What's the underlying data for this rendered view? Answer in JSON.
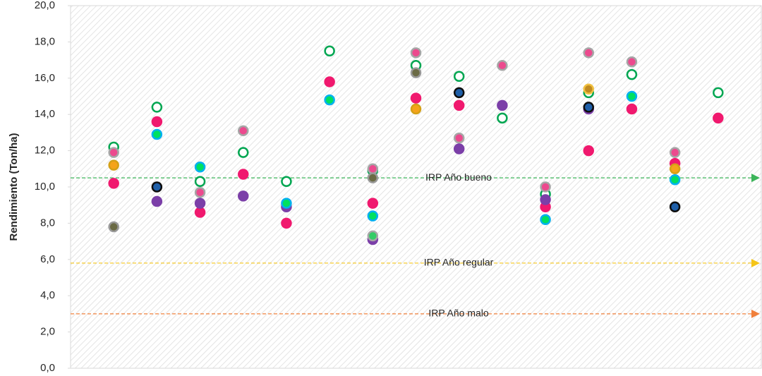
{
  "chart_data": {
    "type": "scatter",
    "y_label": "Rendimiento (Ton/ha)",
    "x": [
      1,
      2,
      3,
      4,
      5,
      6,
      7,
      8,
      9,
      10,
      11,
      12,
      13,
      14,
      15
    ],
    "xlim": [
      0,
      16
    ],
    "ylim": [
      0,
      20
    ],
    "yticks": [
      {
        "value": 0,
        "label": "0,0"
      },
      {
        "value": 2,
        "label": "2,0"
      },
      {
        "value": 4,
        "label": "4,0"
      },
      {
        "value": 6,
        "label": "6,0"
      },
      {
        "value": 8,
        "label": "8,0"
      },
      {
        "value": 10,
        "label": "10,0"
      },
      {
        "value": 12,
        "label": "12,0"
      },
      {
        "value": 14,
        "label": "14,0"
      },
      {
        "value": 16,
        "label": "16,0"
      },
      {
        "value": 18,
        "label": "18,0"
      },
      {
        "value": 20,
        "label": "20,0"
      }
    ],
    "series": [
      {
        "color": "#ffffff",
        "edgecolor": "#00a651",
        "values": [
          12.2,
          14.4,
          10.3,
          11.9,
          10.3,
          17.5,
          10.9,
          16.7,
          16.1,
          13.8,
          9.6,
          15.2,
          16.2,
          null,
          15.2
        ]
      },
      {
        "color": "#ec4a8e",
        "edgecolor": "#a6a6a6",
        "values": [
          11.9,
          null,
          9.7,
          13.1,
          null,
          null,
          11.0,
          17.4,
          12.7,
          16.7,
          10.0,
          17.4,
          16.9,
          11.9,
          null
        ]
      },
      {
        "color": "#f0196e",
        "edgecolor": "#f0196e",
        "values": [
          10.2,
          13.6,
          8.6,
          10.7,
          8.0,
          15.8,
          9.1,
          14.9,
          14.5,
          null,
          8.9,
          12.0,
          14.3,
          11.3,
          13.8
        ]
      },
      {
        "color": "#7b3fa8",
        "edgecolor": "#7b3fa8",
        "values": [
          null,
          9.2,
          9.1,
          9.5,
          8.9,
          null,
          7.1,
          null,
          12.1,
          14.5,
          9.3,
          14.3,
          null,
          null,
          null
        ]
      },
      {
        "color": "#f5a31a",
        "edgecolor": "#d4a017",
        "values": [
          11.2,
          null,
          null,
          null,
          null,
          null,
          null,
          14.3,
          null,
          null,
          null,
          null,
          null,
          11.0,
          null
        ]
      },
      {
        "color": "#6b6b45",
        "edgecolor": "#999999",
        "values": [
          7.8,
          null,
          null,
          null,
          null,
          null,
          10.5,
          16.3,
          null,
          null,
          null,
          null,
          null,
          null,
          null
        ]
      },
      {
        "color": "#00e060",
        "edgecolor": "#00b0f0",
        "values": [
          null,
          12.9,
          11.1,
          null,
          9.1,
          14.8,
          8.4,
          null,
          null,
          null,
          8.2,
          null,
          15.0,
          10.4,
          null
        ]
      },
      {
        "color": "#1f5fa8",
        "edgecolor": "#0d0d0d",
        "values": [
          null,
          10.0,
          null,
          null,
          null,
          null,
          null,
          null,
          15.2,
          null,
          null,
          14.4,
          null,
          8.9,
          null
        ]
      },
      {
        "color": "#33cc66",
        "edgecolor": "#a6a6a6",
        "values": [
          null,
          null,
          null,
          null,
          null,
          null,
          7.3,
          null,
          null,
          null,
          null,
          null,
          null,
          null,
          null
        ]
      },
      {
        "color": "#c08a20",
        "edgecolor": "#f0c040",
        "values": [
          null,
          null,
          null,
          null,
          null,
          null,
          null,
          null,
          null,
          null,
          null,
          15.4,
          null,
          null,
          null
        ]
      }
    ],
    "reference_lines": [
      {
        "label": "IRP Año bueno",
        "value": 10.5,
        "color": "#3cb55a"
      },
      {
        "label": "IRP Año regular",
        "value": 5.8,
        "color": "#f5c518"
      },
      {
        "label": "IRP Año malo",
        "value": 3.0,
        "color": "#f0803c"
      }
    ]
  }
}
